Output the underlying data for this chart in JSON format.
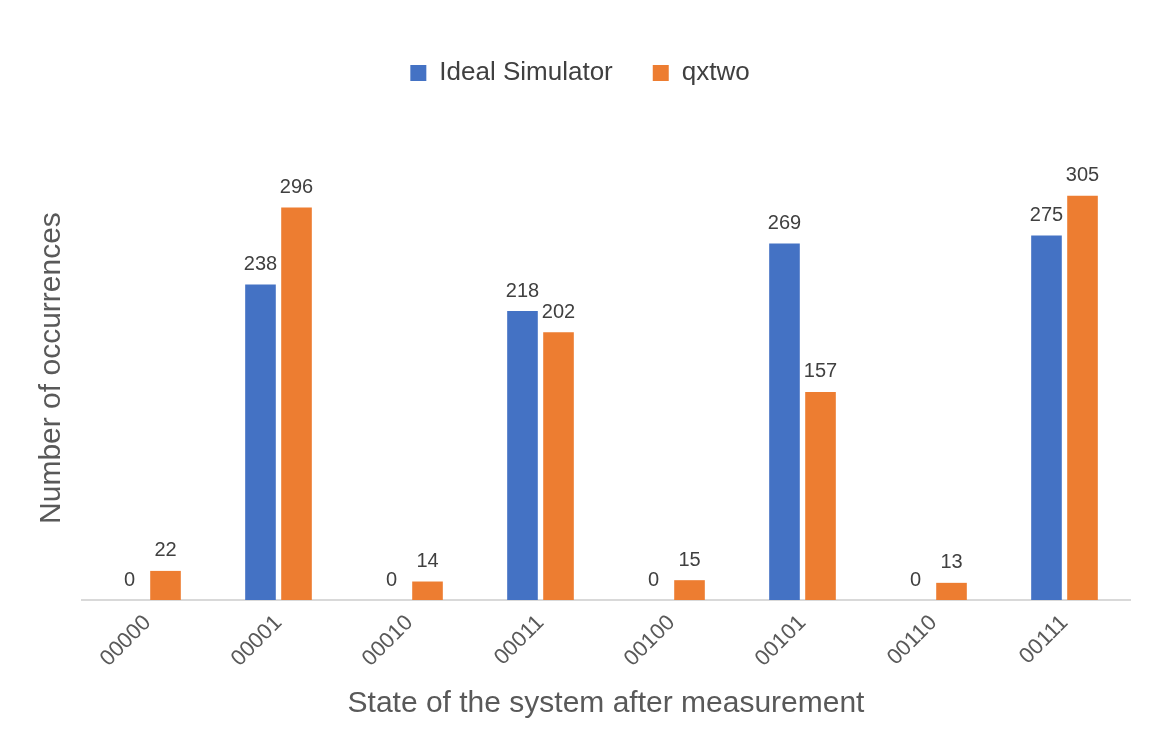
{
  "chart_data": {
    "type": "bar",
    "categories": [
      "00000",
      "00001",
      "00010",
      "00011",
      "00100",
      "00101",
      "00110",
      "00111"
    ],
    "series": [
      {
        "name": "Ideal Simulator",
        "color": "#4472c4",
        "values": [
          0,
          238,
          0,
          218,
          0,
          269,
          0,
          275
        ]
      },
      {
        "name": "qxtwo",
        "color": "#ed7d31",
        "values": [
          22,
          296,
          14,
          202,
          15,
          157,
          13,
          305
        ]
      }
    ],
    "xlabel": "State of the system after measurement",
    "ylabel": "Number of occurrences",
    "tick_labels": "x",
    "grid": false,
    "legend": "top",
    "data_labels": true
  }
}
